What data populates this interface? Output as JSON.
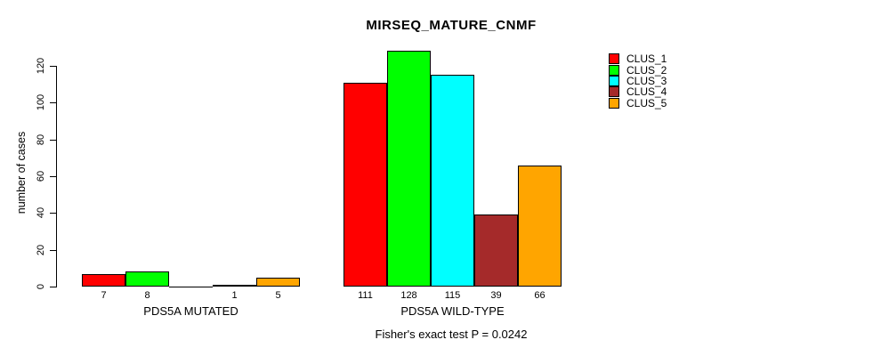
{
  "chart_data": {
    "type": "bar",
    "title": "MIRSEQ_MATURE_CNMF",
    "ylabel": "number of cases",
    "footer": "Fisher's exact test P = 0.0242",
    "ylim": [
      0,
      120
    ],
    "yticks": [
      0,
      20,
      40,
      60,
      80,
      100,
      120
    ],
    "grid": false,
    "legend_position": "top-right",
    "categories": [
      "PDS5A MUTATED",
      "PDS5A WILD-TYPE"
    ],
    "series": [
      {
        "name": "CLUS_1",
        "color": "#ff0000",
        "values": [
          7,
          111
        ]
      },
      {
        "name": "CLUS_2",
        "color": "#00ff00",
        "values": [
          8,
          128
        ]
      },
      {
        "name": "CLUS_3",
        "color": "#00ffff",
        "values": [
          0,
          115
        ]
      },
      {
        "name": "CLUS_4",
        "color": "#a52a2a",
        "values": [
          1,
          39
        ]
      },
      {
        "name": "CLUS_5",
        "color": "#ffa500",
        "values": [
          5,
          66
        ]
      }
    ],
    "bar_value_labels": [
      [
        "7",
        "8",
        "",
        "1",
        "5"
      ],
      [
        "111",
        "128",
        "115",
        "39",
        "66"
      ]
    ]
  }
}
